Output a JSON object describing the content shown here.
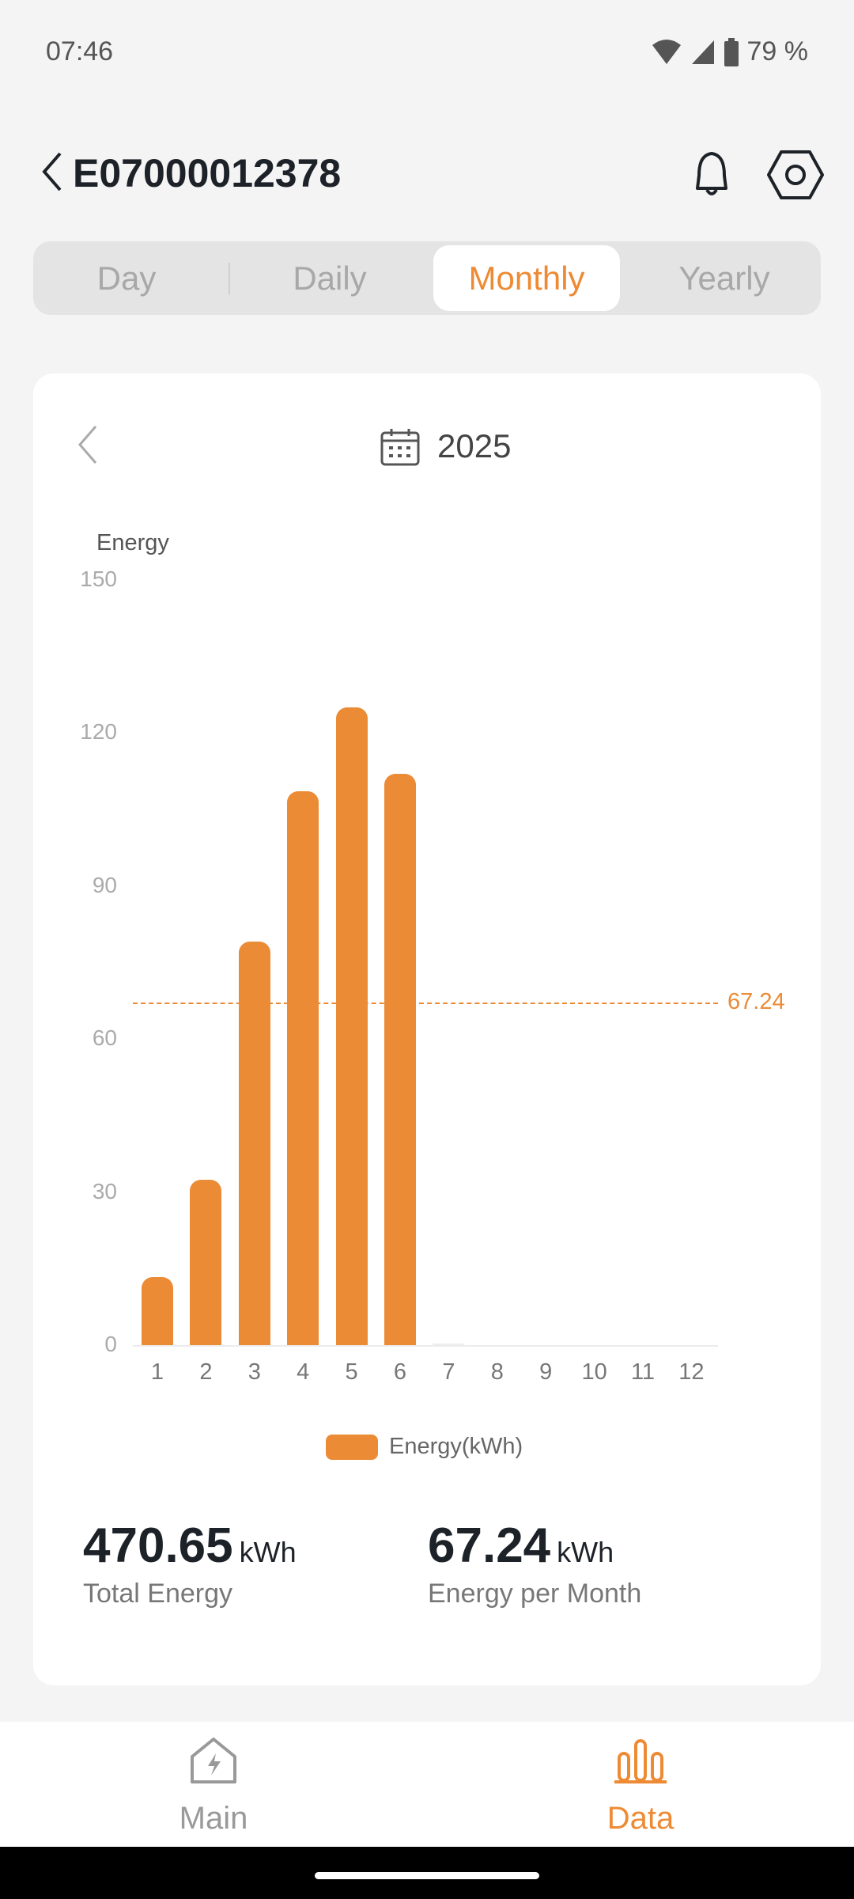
{
  "status": {
    "time": "07:46",
    "battery": "79 %"
  },
  "header": {
    "title": "E07000012378"
  },
  "tabs": [
    {
      "label": "Day"
    },
    {
      "label": "Daily"
    },
    {
      "label": "Monthly",
      "active": true
    },
    {
      "label": "Yearly"
    }
  ],
  "card": {
    "year": "2025"
  },
  "chart_data": {
    "type": "bar",
    "ylabel": "Energy",
    "categories": [
      "1",
      "2",
      "3",
      "4",
      "5",
      "6",
      "7",
      "8",
      "9",
      "10",
      "11",
      "12"
    ],
    "values": [
      13.3,
      32.4,
      79.1,
      108.6,
      125.0,
      112.0,
      0.25,
      0,
      0,
      0,
      0,
      0
    ],
    "ylim": [
      0,
      150
    ],
    "yticks": [
      "0",
      "30",
      "60",
      "90",
      "120",
      "150"
    ],
    "average_line": {
      "value": 67.24,
      "label": "67.24"
    },
    "legend": "Energy(kWh)",
    "color": "#ec8b35"
  },
  "stats": {
    "total_value": "470.65",
    "total_unit": "kWh",
    "total_label": "Total Energy",
    "avg_value": "67.24",
    "avg_unit": "kWh",
    "avg_label": "Energy per Month"
  },
  "nav": {
    "main": "Main",
    "data": "Data",
    "active_color": "#ee8a33"
  }
}
